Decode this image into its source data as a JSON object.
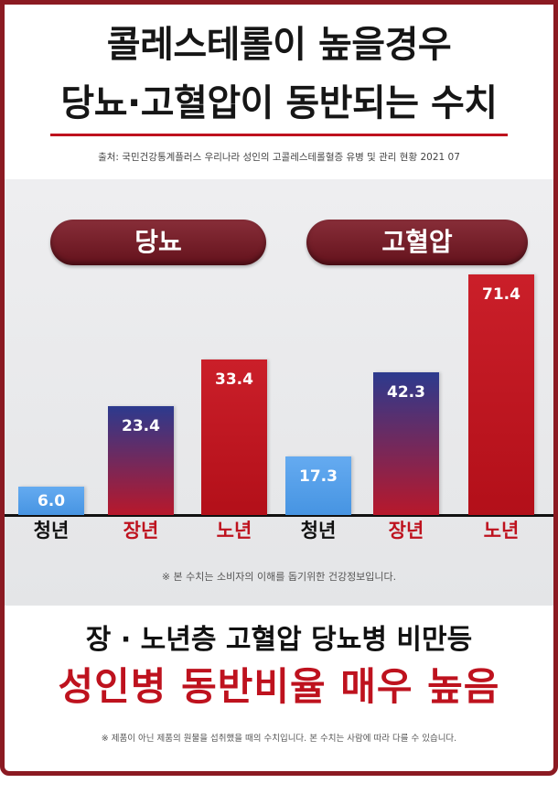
{
  "title": {
    "line1": "콜레스테롤이 높을경우",
    "line2": "당뇨·고혈압이 동반되는 수치"
  },
  "source": "출처: 국민건강통계플러스 우리나라 성인의 고콜레스테롤혈증 유병 및 관리 현황 2021 07",
  "note": "※ 본 수치는 소비자의 이해를 돕기위한 건강정보입니다.",
  "summary": {
    "line1": "장 · 노년층 고혈압 당뇨병 비만등",
    "line2": "성인병 동반비율 매우 높음"
  },
  "footer": "※ 제품이 아닌 제품의 원물을 섭취했을 때의 수치입니다. 본 수치는 사람에 따라 다를 수 있습니다.",
  "colors": {
    "frame": "#8b1a22",
    "accent_red": "#be121e",
    "text_dark": "#111111",
    "pill": "#7a1622",
    "bar_youth": "#4a9cee",
    "bar_middle_top": "#2c3a8e",
    "bar_middle_bottom": "#b8182b",
    "bar_senior": "#c7111c"
  },
  "chart_data": {
    "type": "bar",
    "groups": [
      {
        "label": "당뇨",
        "categories": [
          "청년",
          "장년",
          "노년"
        ],
        "values": [
          6.0,
          23.4,
          33.4
        ]
      },
      {
        "label": "고혈압",
        "categories": [
          "청년",
          "장년",
          "노년"
        ],
        "values": [
          17.3,
          42.3,
          71.4
        ]
      }
    ],
    "grid": false,
    "legend": "none"
  }
}
